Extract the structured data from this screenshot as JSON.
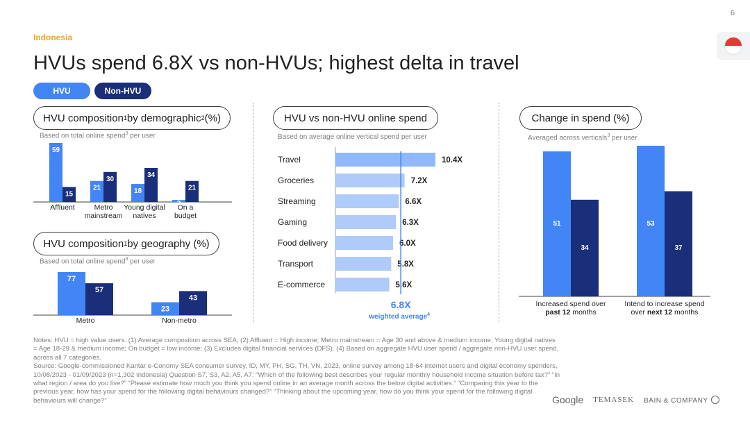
{
  "page_number": "6",
  "country": "Indonesia",
  "title": "HVUs spend 6.8X vs non-HVUs; highest delta in travel",
  "legend": {
    "hvu": "HVU",
    "non_hvu": "Non-HVU"
  },
  "colors": {
    "hvu": "#4285f4",
    "non_hvu": "#1a2e7a",
    "travel_bar": "#8fb8ff",
    "other_bars": "#aecbfa",
    "accent": "#f5a623",
    "weighted": "#4285f4"
  },
  "sections": {
    "demographic": {
      "title": "HVU composition",
      "sup1": "1",
      "title_mid": " by demographic",
      "sup2": "2",
      "title_end": " (%)",
      "sub": "Based on total online spend",
      "sub_sup": "3",
      "sub_end": " per user"
    },
    "geography": {
      "title": "HVU composition",
      "sup1": "1",
      "title_end": " by geography (%)",
      "sub": "Based on total online spend",
      "sub_sup": "3",
      "sub_end": " per user"
    },
    "spend": {
      "title": "HVU vs non-HVU online spend",
      "sub": "Based on average online vertical spend per user"
    },
    "change": {
      "title": "Change in spend (%)",
      "sub": "Averaged across verticals",
      "sub_sup": "3",
      "sub_end": " per user"
    }
  },
  "chart_data": [
    {
      "type": "bar",
      "categories": [
        [
          "Affluent"
        ],
        [
          "Metro",
          "mainstream"
        ],
        [
          "Young digital",
          "natives"
        ],
        [
          "On a",
          "budget"
        ]
      ],
      "series": [
        {
          "name": "HVU",
          "values": [
            59,
            21,
            18,
            2
          ]
        },
        {
          "name": "Non-HVU",
          "values": [
            15,
            30,
            34,
            21
          ]
        }
      ],
      "ylim": [
        0,
        59
      ]
    },
    {
      "type": "bar",
      "categories": [
        [
          "Metro"
        ],
        [
          "Non-metro"
        ]
      ],
      "series": [
        {
          "name": "HVU",
          "values": [
            77,
            23
          ]
        },
        {
          "name": "Non-HVU",
          "values": [
            57,
            43
          ]
        }
      ],
      "ylim": [
        0,
        77
      ]
    },
    {
      "type": "bar",
      "orientation": "horizontal",
      "categories": [
        "Travel",
        "Groceries",
        "Streaming",
        "Gaming",
        "Food delivery",
        "Transport",
        "E-commerce"
      ],
      "values": [
        10.4,
        7.2,
        6.6,
        6.3,
        6.0,
        5.8,
        5.6
      ],
      "value_labels": [
        "10.4X",
        "7.2X",
        "6.6X",
        "6.3X",
        "6.0X",
        "5.8X",
        "5.6X"
      ],
      "weighted_average": 6.8,
      "weighted_average_label": "6.8X",
      "weighted_average_text": "weighted average",
      "weighted_average_sup": "4",
      "xlim": [
        0,
        10.4
      ]
    },
    {
      "type": "bar",
      "categories": [
        {
          "line1": "Increased spend over",
          "line2_pre": "",
          "line2_bold": "past 12",
          "line2_post": " months"
        },
        {
          "line1": "Intend to increase spend",
          "line2_pre": "over ",
          "line2_bold": "next 12",
          "line2_post": " months"
        }
      ],
      "series": [
        {
          "name": "HVU",
          "values": [
            51,
            53
          ]
        },
        {
          "name": "Non-HVU",
          "values": [
            34,
            37
          ]
        }
      ],
      "ylim": [
        0,
        53
      ]
    }
  ],
  "notes": [
    "Notes: HVU = high value users. (1) Average composition across SEA; (2) Affluent = High income; Metro mainstream = Age 30 and above & medium income; Young digital natives = Age 18-29 & medium income; On budget = low income; (3) Excludes digital financial services (DFS). (4) Based on aggregate HVU user spend / aggregate non-HVU user spend, across all 7 categories.",
    "Source: Google-commissioned Kantar e-Conomy SEA consumer survey, ID, MY, PH, SG, TH, VN, 2023, online survey among 18-64 internet users and digital economy spenders, 10/08/2023 - 01/09/2023 (n=1,302 Indonesia) Question S7, S3, A2, A5, A7: “Which of the following best describes your regular monthly household income situation before tax?” “In what region / area do you live?” “Please estimate how much you think you spend online in an average month across the below digital activities.” “Comparing this year to the previous year, how has your spend for the following digital behaviours changed?” “Thinking about the upcoming year, how do you think your spend for the following digital behaviours will change?”"
  ],
  "logos": {
    "google": "Google",
    "temasek": "TEMASEK",
    "bain": "BAIN & COMPANY"
  }
}
